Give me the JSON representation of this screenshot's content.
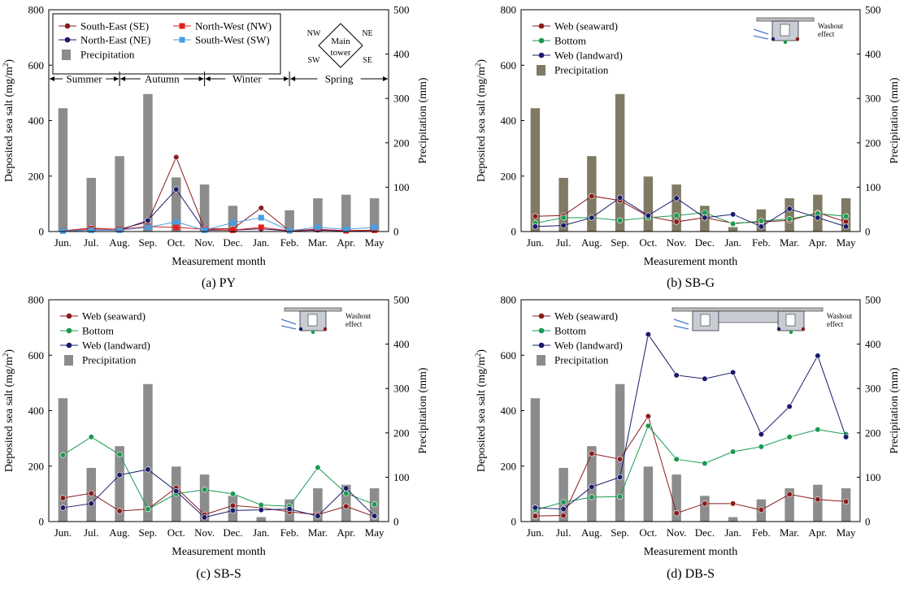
{
  "colors": {
    "se": "#8b1a1a",
    "ne": "#1a1a6e",
    "nw": "#e0201e",
    "sw": "#4a9de0",
    "seaward": "#8b1a1a",
    "bottom": "#1a9a50",
    "landward": "#1a1a6e",
    "precip_gray": "#8c8c8c",
    "precip_olive": "#807a64"
  },
  "chart_data": [
    {
      "id": "a",
      "type": "bar+line",
      "caption": "(a)  PY",
      "xlabel": "Measurement month",
      "ylabel": "Deposited sea salt (mg/m²)",
      "ylabel_right": "Precipitation (mm)",
      "ylim": [
        0,
        800
      ],
      "ylim_right": [
        0,
        500
      ],
      "yticks": [
        0,
        200,
        400,
        600,
        800
      ],
      "yticks_right": [
        0,
        100,
        200,
        300,
        400,
        500
      ],
      "categories": [
        "Jun.",
        "Jul.",
        "Aug.",
        "Sep.",
        "Oct.",
        "Nov.",
        "Dec.",
        "Jan.",
        "Feb.",
        "Mar.",
        "Apr.",
        "May"
      ],
      "precipitation": [
        278,
        121,
        170,
        310,
        122,
        106,
        58,
        0,
        48,
        75,
        83,
        75
      ],
      "precip_label": "Precipitation",
      "precip_color": "#8c8c8c",
      "series": [
        {
          "name": "South-East (SE)",
          "color": "#8b1a1a",
          "marker": "circle",
          "values": [
            3,
            12,
            8,
            35,
            268,
            10,
            10,
            85,
            3,
            8,
            3,
            5
          ]
        },
        {
          "name": "North-East (NE)",
          "color": "#1a1a6e",
          "marker": "circle",
          "values": [
            2,
            5,
            5,
            40,
            152,
            5,
            5,
            10,
            2,
            5,
            2,
            4
          ]
        },
        {
          "name": "North-West (NW)",
          "color": "#e0201e",
          "marker": "square",
          "values": [
            3,
            10,
            8,
            18,
            15,
            8,
            5,
            15,
            3,
            8,
            3,
            5
          ]
        },
        {
          "name": "South-West (SW)",
          "color": "#4a9de0",
          "marker": "square",
          "values": [
            2,
            5,
            5,
            15,
            35,
            5,
            32,
            50,
            3,
            15,
            8,
            15
          ]
        }
      ],
      "seasons": [
        "Summer",
        "Autumn",
        "Winter",
        "Spring"
      ],
      "compass": {
        "nw": "NW",
        "ne": "NE",
        "sw": "SW",
        "se": "SE",
        "center_line1": "Main",
        "center_line2": "tower"
      }
    },
    {
      "id": "b",
      "type": "bar+line",
      "caption": "(b) SB-G",
      "xlabel": "Measurement month",
      "ylabel": "Deposited sea salt (mg/m²)",
      "ylabel_right": "Precipitation (mm)",
      "ylim": [
        0,
        800
      ],
      "ylim_right": [
        0,
        500
      ],
      "yticks": [
        0,
        200,
        400,
        600,
        800
      ],
      "yticks_right": [
        0,
        100,
        200,
        300,
        400,
        500
      ],
      "categories": [
        "Jun.",
        "Jul.",
        "Aug.",
        "Sep.",
        "Oct.",
        "Nov.",
        "Dec.",
        "Jan.",
        "Feb.",
        "Mar.",
        "Apr.",
        "May"
      ],
      "precipitation": [
        278,
        121,
        170,
        310,
        124,
        106,
        58,
        10,
        50,
        75,
        83,
        75
      ],
      "precip_label": "Precipitation",
      "precip_color": "#807a64",
      "series": [
        {
          "name": "Web (seaward)",
          "color": "#8b1a1a",
          "marker": "circle",
          "values": [
            55,
            58,
            128,
            112,
            55,
            35,
            50,
            30,
            35,
            40,
            68,
            35
          ]
        },
        {
          "name": "Bottom",
          "color": "#1a9a50",
          "marker": "circle",
          "values": [
            30,
            50,
            50,
            40,
            50,
            58,
            68,
            28,
            38,
            45,
            65,
            55
          ]
        },
        {
          "name": "Web (landward)",
          "color": "#1a1a6e",
          "marker": "circle",
          "values": [
            18,
            22,
            50,
            122,
            58,
            120,
            50,
            62,
            18,
            82,
            50,
            18
          ]
        }
      ],
      "inset_note": "Washout effect"
    },
    {
      "id": "c",
      "type": "bar+line",
      "caption": "(c) SB-S",
      "xlabel": "Measurement month",
      "ylabel": "Deposited sea salt (mg/m²)",
      "ylabel_right": "Precipitation (mm)",
      "ylim": [
        0,
        800
      ],
      "ylim_right": [
        0,
        500
      ],
      "yticks": [
        0,
        200,
        400,
        600,
        800
      ],
      "yticks_right": [
        0,
        100,
        200,
        300,
        400,
        500
      ],
      "categories": [
        "Jun.",
        "Jul.",
        "Aug.",
        "Sep.",
        "Oct.",
        "Nov.",
        "Dec.",
        "Jan.",
        "Feb.",
        "Mar.",
        "Apr.",
        "May"
      ],
      "precipitation": [
        278,
        121,
        170,
        310,
        124,
        106,
        58,
        10,
        50,
        75,
        83,
        75
      ],
      "precip_label": "Precipitation",
      "precip_color": "#8c8c8c",
      "series": [
        {
          "name": "Web (seaward)",
          "color": "#8b1a1a",
          "marker": "circle",
          "values": [
            85,
            102,
            38,
            45,
            122,
            25,
            58,
            50,
            35,
            25,
            55,
            18
          ]
        },
        {
          "name": "Bottom",
          "color": "#1a9a50",
          "marker": "circle",
          "values": [
            240,
            305,
            242,
            45,
            100,
            115,
            100,
            60,
            55,
            195,
            102,
            62
          ]
        },
        {
          "name": "Web (landward)",
          "color": "#1a1a6e",
          "marker": "circle",
          "values": [
            50,
            65,
            168,
            188,
            110,
            15,
            40,
            42,
            45,
            20,
            120,
            20
          ]
        }
      ],
      "inset_note": "Washout effect"
    },
    {
      "id": "d",
      "type": "bar+line",
      "caption": "(d) DB-S",
      "xlabel": "Measurement month",
      "ylabel": "Deposited sea salt (mg/m²)",
      "ylabel_right": "Precipitation (mm)",
      "ylim": [
        0,
        800
      ],
      "ylim_right": [
        0,
        500
      ],
      "yticks": [
        0,
        200,
        400,
        600,
        800
      ],
      "yticks_right": [
        0,
        100,
        200,
        300,
        400,
        500
      ],
      "categories": [
        "Jun.",
        "Jul.",
        "Aug.",
        "Sep.",
        "Oct.",
        "Nov.",
        "Dec.",
        "Jan.",
        "Feb.",
        "Mar.",
        "Apr.",
        "May"
      ],
      "precipitation": [
        278,
        121,
        170,
        310,
        124,
        106,
        58,
        10,
        50,
        75,
        83,
        75
      ],
      "precip_label": "Precipitation",
      "precip_color": "#8c8c8c",
      "series": [
        {
          "name": "Web (seaward)",
          "color": "#8b1a1a",
          "marker": "circle",
          "values": [
            20,
            22,
            245,
            225,
            380,
            30,
            65,
            65,
            42,
            98,
            80,
            72
          ]
        },
        {
          "name": "Bottom",
          "color": "#1a9a50",
          "marker": "circle",
          "values": [
            42,
            70,
            88,
            90,
            345,
            225,
            210,
            252,
            270,
            305,
            332,
            315
          ]
        },
        {
          "name": "Web (landward)",
          "color": "#1a1a6e",
          "marker": "circle",
          "values": [
            50,
            45,
            125,
            160,
            675,
            528,
            515,
            538,
            315,
            415,
            598,
            305
          ]
        }
      ],
      "inset_note": "Washout effect"
    }
  ]
}
